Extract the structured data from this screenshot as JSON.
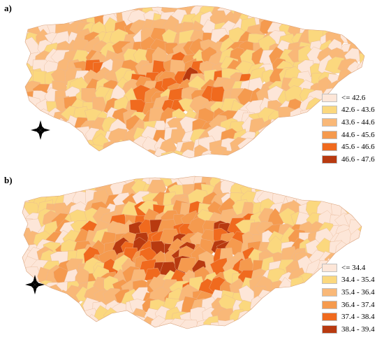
{
  "panels": [
    {
      "label": "a)",
      "legend": [
        {
          "label": "<= 42.6",
          "color": "#fde6d8"
        },
        {
          "label": "42.6 - 43.6",
          "color": "#fbd87e"
        },
        {
          "label": "43.6 - 44.6",
          "color": "#f9b878"
        },
        {
          "label": "44.6 - 45.6",
          "color": "#f59a4e"
        },
        {
          "label": "45.6 - 46.6",
          "color": "#f06a1e"
        },
        {
          "label": "46.6 - 47.6",
          "color": "#b83a10"
        }
      ],
      "compass_icon": "north-arrow-compass-icon"
    },
    {
      "label": "b)",
      "legend": [
        {
          "label": "<= 34.4",
          "color": "#fde6d8"
        },
        {
          "label": "34.4 - 35.4",
          "color": "#fbd87e"
        },
        {
          "label": "35.4 - 36.4",
          "color": "#f9b878"
        },
        {
          "label": "36.4 - 37.4",
          "color": "#f59a4e"
        },
        {
          "label": "37.4 - 38.4",
          "color": "#f06a1e"
        },
        {
          "label": "38.4 - 39.4",
          "color": "#b83a10"
        }
      ],
      "compass_icon": "north-arrow-compass-icon"
    }
  ]
}
